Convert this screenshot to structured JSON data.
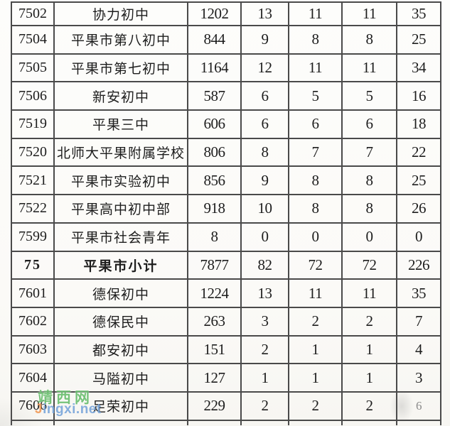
{
  "colors": {
    "border": "#4a4a4a",
    "text": "#1d1d1d",
    "paper": "#fbfaf7",
    "watermark_green": "#6cbf70",
    "watermark_orange": "#f09b5a",
    "watermark_blue": "#79a6da"
  },
  "watermark": {
    "site_name": "靖西网",
    "url_first_letter": "J",
    "url_rest": "ingxi.net"
  },
  "table": {
    "rows": [
      {
        "cells": [
          "7502",
          "协力初中",
          "1202",
          "13",
          "11",
          "11",
          "35"
        ],
        "bold": false
      },
      {
        "cells": [
          "7504",
          "平果市第八初中",
          "844",
          "9",
          "8",
          "8",
          "25"
        ],
        "bold": false
      },
      {
        "cells": [
          "7505",
          "平果市第七初中",
          "1164",
          "12",
          "11",
          "11",
          "34"
        ],
        "bold": false
      },
      {
        "cells": [
          "7506",
          "新安初中",
          "587",
          "6",
          "5",
          "5",
          "16"
        ],
        "bold": false
      },
      {
        "cells": [
          "7519",
          "平果三中",
          "606",
          "6",
          "6",
          "6",
          "18"
        ],
        "bold": false
      },
      {
        "cells": [
          "7520",
          "北师大平果附属学校",
          "806",
          "8",
          "7",
          "7",
          "22"
        ],
        "bold": false
      },
      {
        "cells": [
          "7521",
          "平果市实验初中",
          "856",
          "9",
          "8",
          "8",
          "25"
        ],
        "bold": false
      },
      {
        "cells": [
          "7522",
          "平果高中初中部",
          "918",
          "10",
          "8",
          "8",
          "26"
        ],
        "bold": false
      },
      {
        "cells": [
          "7599",
          "平果市社会青年",
          "8",
          "0",
          "0",
          "0",
          "0"
        ],
        "bold": false
      },
      {
        "cells": [
          "75",
          "平果市小计",
          "7877",
          "82",
          "72",
          "72",
          "226"
        ],
        "bold": true
      },
      {
        "cells": [
          "7601",
          "德保初中",
          "1224",
          "13",
          "11",
          "11",
          "35"
        ],
        "bold": false
      },
      {
        "cells": [
          "7602",
          "德保民中",
          "263",
          "3",
          "2",
          "2",
          "7"
        ],
        "bold": false
      },
      {
        "cells": [
          "7603",
          "都安初中",
          "151",
          "2",
          "1",
          "1",
          "4"
        ],
        "bold": false
      },
      {
        "cells": [
          "7604",
          "马隘初中",
          "127",
          "1",
          "1",
          "1",
          "3"
        ],
        "bold": false
      },
      {
        "cells": [
          "7606",
          "足荣初中",
          "229",
          "2",
          "2",
          "2",
          "6"
        ],
        "bold": false,
        "faded_last": true
      }
    ]
  }
}
